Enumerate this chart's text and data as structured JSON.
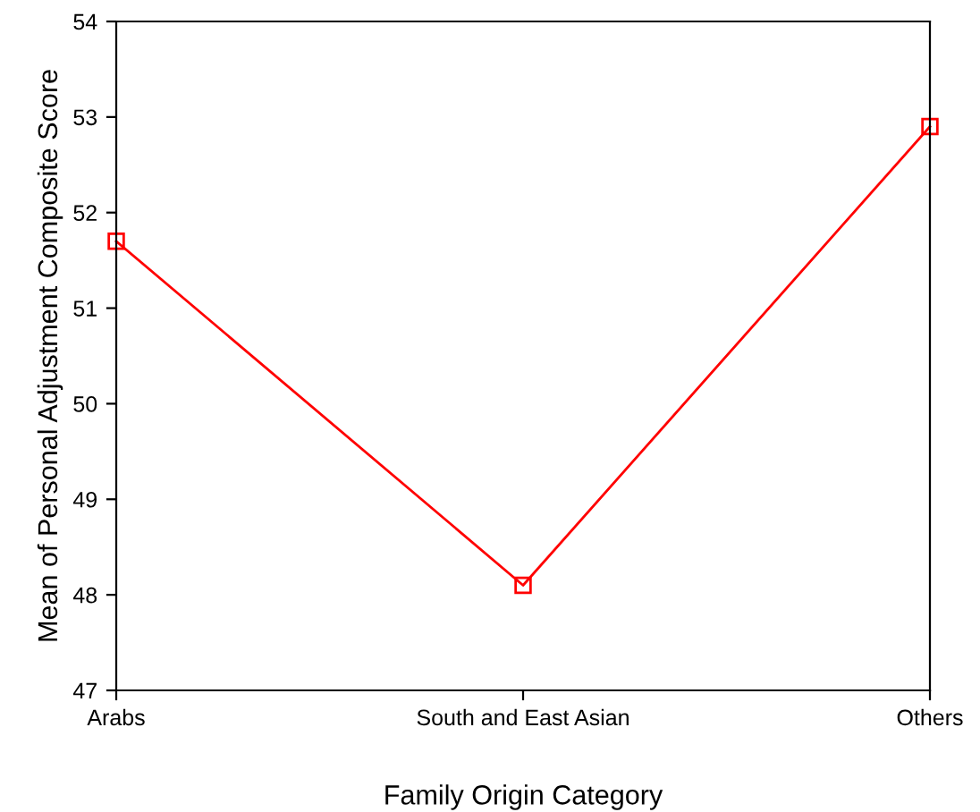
{
  "chart_data": {
    "type": "line",
    "xlabel": "Family Origin Category",
    "ylabel": "Mean of Personal Adjustment Composite Score",
    "categories": [
      "Arabs",
      "South and East Asian",
      "Others"
    ],
    "series": [
      {
        "color": "#ff0000",
        "values": [
          51.7,
          48.1,
          52.9
        ]
      }
    ],
    "ylim": [
      47,
      54
    ],
    "yticks": [
      47,
      48,
      49,
      50,
      51,
      52,
      53,
      54
    ],
    "marker": "square",
    "line_style": "solid",
    "grid": false,
    "legend": false
  }
}
